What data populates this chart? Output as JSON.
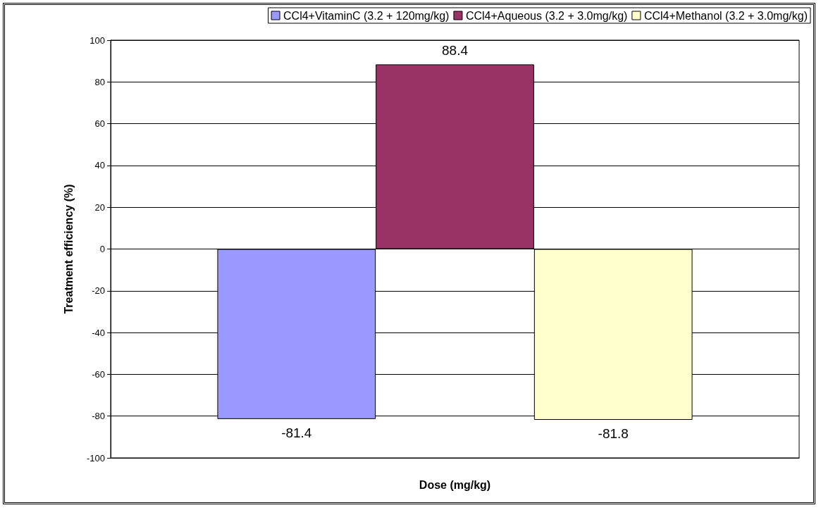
{
  "chart_data": {
    "type": "bar",
    "xlabel": "Dose (mg/kg)",
    "ylabel": "Treatment efficiency (%)",
    "categories": [
      null
    ],
    "series": [
      {
        "name": "CCl4+VitaminC (3.2 + 120mg/kg)",
        "color": "#9999ff",
        "values": [
          -81.4
        ]
      },
      {
        "name": "CCl4+Aqueous (3.2 + 3.0mg/kg)",
        "color": "#993366",
        "values": [
          88.4
        ]
      },
      {
        "name": "CCl4+Methanol (3.2 + 3.0mg/kg)",
        "color": "#ffffcc",
        "values": [
          -81.8
        ]
      }
    ],
    "ylim": [
      -100,
      100
    ],
    "yticks": [
      -100,
      -80,
      -60,
      -40,
      -20,
      0,
      20,
      40,
      60,
      80,
      100
    ],
    "grid": "y",
    "legend": "top right",
    "data_labels": true
  }
}
